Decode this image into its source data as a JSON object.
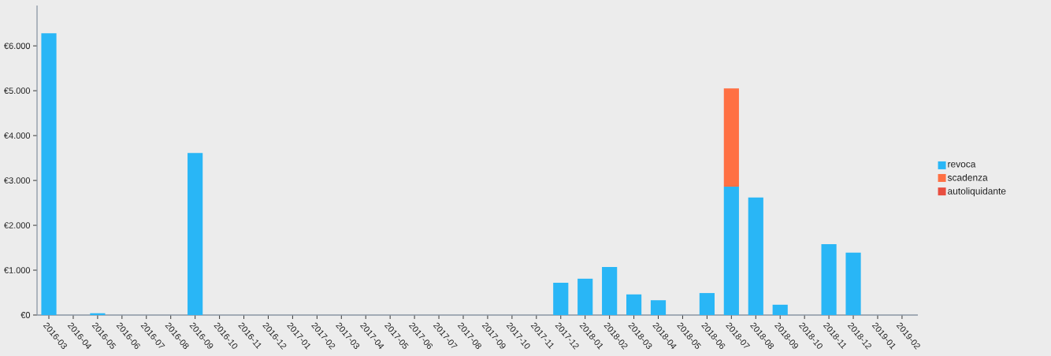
{
  "chart_data": {
    "type": "bar",
    "stacked": true,
    "categories": [
      "2016-03",
      "2016-04",
      "2016-05",
      "2016-06",
      "2016-07",
      "2016-08",
      "2016-09",
      "2016-10",
      "2016-11",
      "2016-12",
      "2017-01",
      "2017-02",
      "2017-03",
      "2017-04",
      "2017-05",
      "2017-06",
      "2017-07",
      "2017-08",
      "2017-09",
      "2017-10",
      "2017-11",
      "2017-12",
      "2018-01",
      "2018-02",
      "2018-03",
      "2018-04",
      "2018-05",
      "2018-06",
      "2018-07",
      "2018-08",
      "2018-09",
      "2018-10",
      "2018-11",
      "2018-12",
      "2019-01",
      "2019-02"
    ],
    "series": [
      {
        "name": "revoca",
        "color": "#29b6f6",
        "values": [
          6280,
          null,
          40,
          null,
          null,
          null,
          3610,
          null,
          null,
          null,
          null,
          null,
          null,
          null,
          null,
          null,
          null,
          null,
          null,
          null,
          null,
          720,
          810,
          1070,
          460,
          330,
          null,
          490,
          2860,
          2620,
          230,
          null,
          1580,
          1390,
          null,
          null
        ]
      },
      {
        "name": "scadenza",
        "color": "#ff7043",
        "values": [
          null,
          null,
          null,
          null,
          null,
          null,
          null,
          null,
          null,
          null,
          null,
          null,
          null,
          null,
          null,
          null,
          null,
          null,
          null,
          null,
          null,
          null,
          null,
          null,
          null,
          null,
          null,
          null,
          2190,
          null,
          null,
          null,
          null,
          null,
          null,
          null
        ]
      },
      {
        "name": "autoliquidante",
        "color": "#e84e40",
        "values": [
          null,
          null,
          null,
          null,
          null,
          null,
          null,
          null,
          null,
          null,
          null,
          null,
          null,
          null,
          null,
          null,
          null,
          null,
          null,
          null,
          null,
          null,
          null,
          null,
          null,
          null,
          null,
          null,
          null,
          null,
          null,
          null,
          null,
          null,
          null,
          null
        ]
      }
    ],
    "ylim": [
      0,
      6900
    ],
    "yticks": [
      {
        "value": 0,
        "label": "€0"
      },
      {
        "value": 1000,
        "label": "€1.000"
      },
      {
        "value": 2000,
        "label": "€2.000"
      },
      {
        "value": 3000,
        "label": "€3.000"
      },
      {
        "value": 4000,
        "label": "€4.000"
      },
      {
        "value": 5000,
        "label": "€5.000"
      },
      {
        "value": 6000,
        "label": "€6.000"
      }
    ],
    "grid": false,
    "legend": "right"
  }
}
